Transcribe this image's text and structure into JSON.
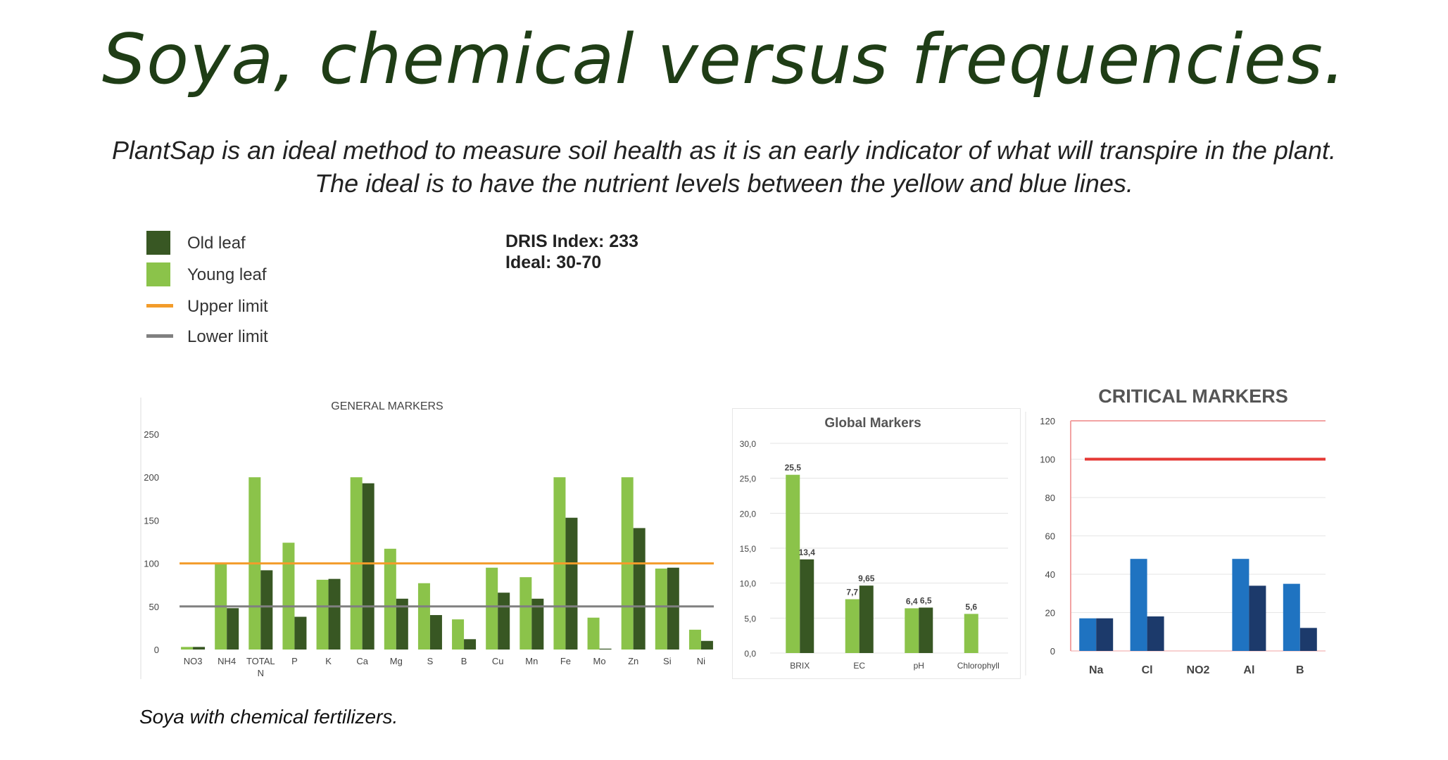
{
  "title": "Soya, chemical versus frequencies.",
  "subtitle_line1": "PlantSap is an ideal method to measure soil health as it is an early indicator of what will transpire in the plant.",
  "subtitle_line2": "The ideal is to have the nutrient levels between the yellow and blue lines.",
  "legend": {
    "items": [
      {
        "label": "Old leaf",
        "kind": "swatch",
        "color": "#385723"
      },
      {
        "label": "Young leaf",
        "kind": "swatch",
        "color": "#8bc34a"
      },
      {
        "label": "Upper limit",
        "kind": "line",
        "color": "#f39c2a"
      },
      {
        "label": "Lower limit",
        "kind": "line",
        "color": "#808080"
      }
    ]
  },
  "dris": {
    "index": "DRIS Index: 233",
    "ideal": "Ideal: 30-70"
  },
  "caption": "Soya with chemical fertilizers.",
  "colors": {
    "old_leaf": "#385723",
    "young_leaf": "#8bc34a",
    "upper_limit": "#f39c2a",
    "lower_limit": "#808080",
    "critical_light": "#1f73c1",
    "critical_dark": "#1c3a6b",
    "critical_limit": "#e53935"
  },
  "chart_data": [
    {
      "type": "bar",
      "title": "GENERAL MARKERS",
      "categories": [
        "NO3",
        "NH4",
        "TOTAL N",
        "P",
        "K",
        "Ca",
        "Mg",
        "S",
        "B",
        "Cu",
        "Mn",
        "Fe",
        "Mo",
        "Zn",
        "Si",
        "Ni"
      ],
      "series": [
        {
          "name": "Young leaf",
          "values": [
            3,
            100,
            200,
            124,
            81,
            200,
            117,
            77,
            35,
            95,
            84,
            200,
            37,
            200,
            94,
            23
          ]
        },
        {
          "name": "Old leaf",
          "values": [
            3,
            48,
            92,
            38,
            82,
            193,
            59,
            40,
            12,
            66,
            59,
            153,
            1,
            141,
            95,
            10
          ]
        }
      ],
      "upper_limit": 100,
      "lower_limit": 50,
      "ylim": [
        0,
        250
      ],
      "yticks": [
        "0",
        "50",
        "100",
        "150",
        "200",
        "250"
      ],
      "grid": false
    },
    {
      "type": "bar",
      "title": "Global Markers",
      "categories": [
        "BRIX",
        "EC",
        "pH",
        "Chlorophyll"
      ],
      "series": [
        {
          "name": "Young leaf",
          "values": [
            25.5,
            7.7,
            6.4,
            5.6
          ],
          "labels": [
            "25,5",
            "7,7",
            "6,4",
            "5,6"
          ]
        },
        {
          "name": "Old leaf",
          "values": [
            13.4,
            9.65,
            6.5,
            null
          ],
          "labels": [
            "13,4",
            "9,65",
            "6,5",
            ""
          ]
        }
      ],
      "ylim": [
        0,
        30
      ],
      "yticks": [
        "0,0",
        "5,0",
        "10,0",
        "15,0",
        "20,0",
        "25,0",
        "30,0"
      ],
      "grid": true
    },
    {
      "type": "bar",
      "title": "CRITICAL MARKERS",
      "categories": [
        "Na",
        "Cl",
        "NO2",
        "Al",
        "B"
      ],
      "series": [
        {
          "values": [
            17,
            48,
            0,
            48,
            35
          ]
        },
        {
          "values": [
            17,
            18,
            0,
            34,
            12
          ]
        }
      ],
      "limit": 100,
      "ylim": [
        0,
        120
      ],
      "yticks": [
        "0",
        "20",
        "40",
        "60",
        "80",
        "100",
        "120"
      ],
      "grid": true
    }
  ]
}
